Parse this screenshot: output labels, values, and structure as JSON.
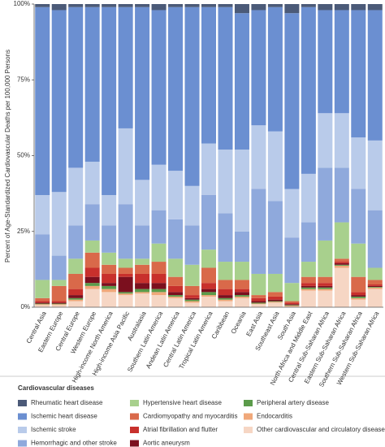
{
  "chart_data": {
    "type": "stacked_bar",
    "y_label": "Percent of Age-Standardized Cardiovascular Deaths per 100,000 Persons",
    "legend_title": "Cardiovascular diseases",
    "categories": [
      "Central Asia",
      "Eastern Europe",
      "Central Europe",
      "Western Europe",
      "High-income North America",
      "High-income Asia Pacific",
      "Australasia",
      "Southern Latin America",
      "Andean Latin America",
      "Central Latin America",
      "Tropical Latin America",
      "Caribbean",
      "Oceania",
      "East Asia",
      "Southeast Asia",
      "South Asia",
      "North Africa and Middle East",
      "Central Sub-Saharan Africa",
      "Eastern Sub-Saharan Africa",
      "Southern Sub-Saharan Africa",
      "Western Sub-Saharan Africa"
    ],
    "series": [
      {
        "name": "Rheumatic heart disease",
        "color": "#4b5a78",
        "values": [
          1,
          2,
          1,
          1,
          1,
          1,
          1,
          2,
          1,
          1,
          1,
          1,
          3,
          2,
          1,
          3,
          1,
          2,
          2,
          2,
          2
        ]
      },
      {
        "name": "Ischemic heart disease",
        "color": "#6b8fd1",
        "values": [
          62,
          60,
          53,
          51,
          62,
          40,
          57,
          51,
          54,
          59,
          45,
          47,
          45,
          38,
          41,
          58,
          55,
          34,
          34,
          42,
          43
        ]
      },
      {
        "name": "Ischemic stroke",
        "color": "#b9cbea",
        "values": [
          13,
          21,
          19,
          14,
          10,
          25,
          15,
          15,
          16,
          13,
          17,
          21,
          27,
          21,
          23,
          16,
          16,
          18,
          18,
          17,
          23
        ]
      },
      {
        "name": "Hemorrhagic and other stroke",
        "color": "#8fa9dc",
        "values": [
          15,
          8,
          11,
          12,
          9,
          18,
          11,
          11,
          13,
          13,
          18,
          16,
          10,
          28,
          24,
          15,
          13,
          24,
          18,
          18,
          19
        ]
      },
      {
        "name": "Hypertensive heart disease",
        "color": "#a8d08d",
        "values": [
          6,
          2,
          5,
          4,
          4,
          3,
          2,
          6,
          6,
          7,
          6,
          6,
          6,
          7,
          6,
          6,
          5,
          12,
          12,
          11,
          4
        ]
      },
      {
        "name": "Cardiomyopathy and myocarditis",
        "color": "#d9694a",
        "values": [
          1,
          5,
          5,
          5,
          3,
          2,
          3,
          4,
          3,
          3,
          5,
          3,
          3,
          1,
          1.5,
          0.5,
          2,
          2,
          1,
          5,
          1.5
        ]
      },
      {
        "name": "Atrial fibrillation and flutter",
        "color": "#c8302c",
        "values": [
          0.5,
          0.5,
          2,
          3,
          3,
          1,
          3,
          3,
          2,
          1,
          2,
          2,
          1,
          1,
          1,
          0.5,
          1,
          1,
          0.5,
          1,
          0.5
        ]
      },
      {
        "name": "Aortic aneurysm",
        "color": "#7b0f1e",
        "values": [
          0.3,
          0.3,
          1,
          2,
          1,
          5,
          2,
          2,
          1,
          0.5,
          1,
          1,
          1,
          0.5,
          0.5,
          0.3,
          0.5,
          0.5,
          0.5,
          0.5,
          0.3
        ]
      },
      {
        "name": "Peripheral artery disease",
        "color": "#5b9b4a",
        "values": [
          0.2,
          0.2,
          0.5,
          1,
          1,
          0.5,
          1,
          1,
          0.5,
          0.5,
          1,
          0.5,
          0.5,
          0.3,
          0.2,
          0.2,
          0.5,
          0.5,
          0.3,
          0.5,
          0.2
        ]
      },
      {
        "name": "Endocarditis",
        "color": "#f0a87a",
        "values": [
          0.3,
          0.3,
          0.5,
          1,
          1,
          0.5,
          0.5,
          1,
          0.5,
          0.5,
          0.5,
          0.5,
          0.5,
          0.2,
          0.3,
          0.3,
          0.5,
          0.5,
          0.7,
          0.5,
          0.5
        ]
      },
      {
        "name": "Other cardiovascular and circulatory diseases",
        "color": "#f6d6c4",
        "values": [
          0.7,
          0.7,
          2,
          6,
          5,
          4,
          4.5,
          4,
          3,
          1.5,
          3.5,
          2,
          3,
          1,
          1.5,
          0.2,
          5.5,
          5.5,
          13,
          2.5,
          6
        ]
      }
    ],
    "ylim": [
      0,
      100
    ],
    "yticks": [
      {
        "value": 0,
        "label": "0%"
      },
      {
        "value": 25,
        "label": "25%"
      },
      {
        "value": 50,
        "label": "50%"
      },
      {
        "value": 75,
        "label": "75%"
      },
      {
        "value": 100,
        "label": "100%"
      }
    ],
    "grid": false
  }
}
